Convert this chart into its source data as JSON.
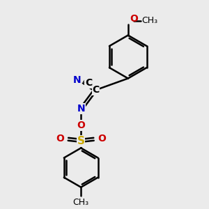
{
  "bg_color": "#ebebeb",
  "bond_color": "#000000",
  "N_color": "#0000cc",
  "O_color": "#cc0000",
  "S_color": "#ccaa00",
  "figsize": [
    3.0,
    3.0
  ],
  "dpi": 100,
  "xlim": [
    0,
    10
  ],
  "ylim": [
    0,
    10
  ]
}
